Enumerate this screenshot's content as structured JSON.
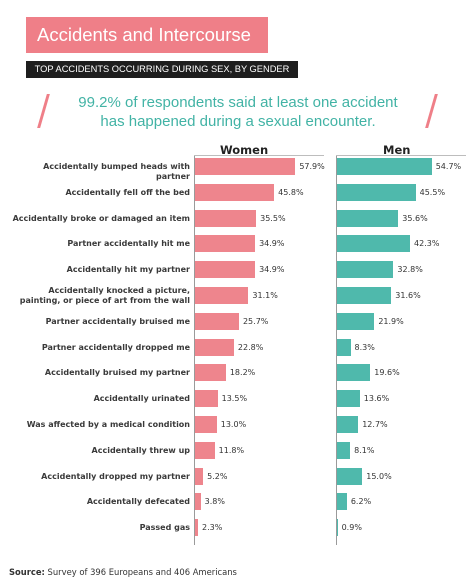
{
  "header": {
    "title": "Accidents and Intercourse",
    "subtitle": "TOP ACCIDENTS OCCURRING DURING SEX, BY GENDER"
  },
  "callout": {
    "line1": "99.2% of respondents said at least one accident",
    "line2": "has happened during a sexual encounter."
  },
  "source": {
    "label": "Source:",
    "text": "Survey of 396 Europeans and 406 Americans"
  },
  "colors": {
    "accent_pink": "#ef7f88",
    "women_bar": "#ee858d",
    "men_bar": "#4fb9ac",
    "teal_text": "#42b3a5",
    "dark_bar": "#1e1e1e"
  },
  "chart_data": {
    "type": "bar",
    "orientation": "horizontal",
    "title": "Accidents and Intercourse",
    "subtitle": "TOP ACCIDENTS OCCURRING DURING SEX, BY GENDER",
    "categories": [
      "Accidentally bumped heads with partner",
      "Accidentally fell off the bed",
      "Accidentally broke or damaged an item",
      "Partner accidentally hit me",
      "Accidentally hit my partner",
      "Accidentally knocked a picture, painting, or piece of art from the wall",
      "Partner accidentally bruised me",
      "Partner accidentally dropped me",
      "Accidentally bruised my partner",
      "Accidentally urinated",
      "Was affected by a medical condition",
      "Accidentally threw up",
      "Accidentally dropped my partner",
      "Accidentally defecated",
      "Passed gas"
    ],
    "series": [
      {
        "name": "Women",
        "values": [
          57.9,
          45.8,
          35.5,
          34.9,
          34.9,
          31.1,
          25.7,
          22.8,
          18.2,
          13.5,
          13.0,
          11.8,
          5.2,
          3.8,
          2.3
        ],
        "labels": [
          "57.9%",
          "45.8%",
          "35.5%",
          "34.9%",
          "34.9%",
          "31.1%",
          "25.7%",
          "22.8%",
          "18.2%",
          "13.5%",
          "13.0%",
          "11.8%",
          "5.2%",
          "3.8%",
          "2.3%"
        ]
      },
      {
        "name": "Men",
        "values": [
          54.7,
          45.5,
          35.6,
          42.3,
          32.8,
          31.6,
          21.9,
          8.3,
          19.6,
          13.6,
          12.7,
          8.1,
          15.0,
          6.2,
          0.9
        ],
        "labels": [
          "54.7%",
          "45.5%",
          "35.6%",
          "42.3%",
          "32.8%",
          "31.6%",
          "21.9%",
          "8.3%",
          "19.6%",
          "13.6%",
          "12.7%",
          "8.1%",
          "15.0%",
          "6.2%",
          "0.9%"
        ]
      }
    ],
    "legend": "column headers",
    "grid": false
  }
}
